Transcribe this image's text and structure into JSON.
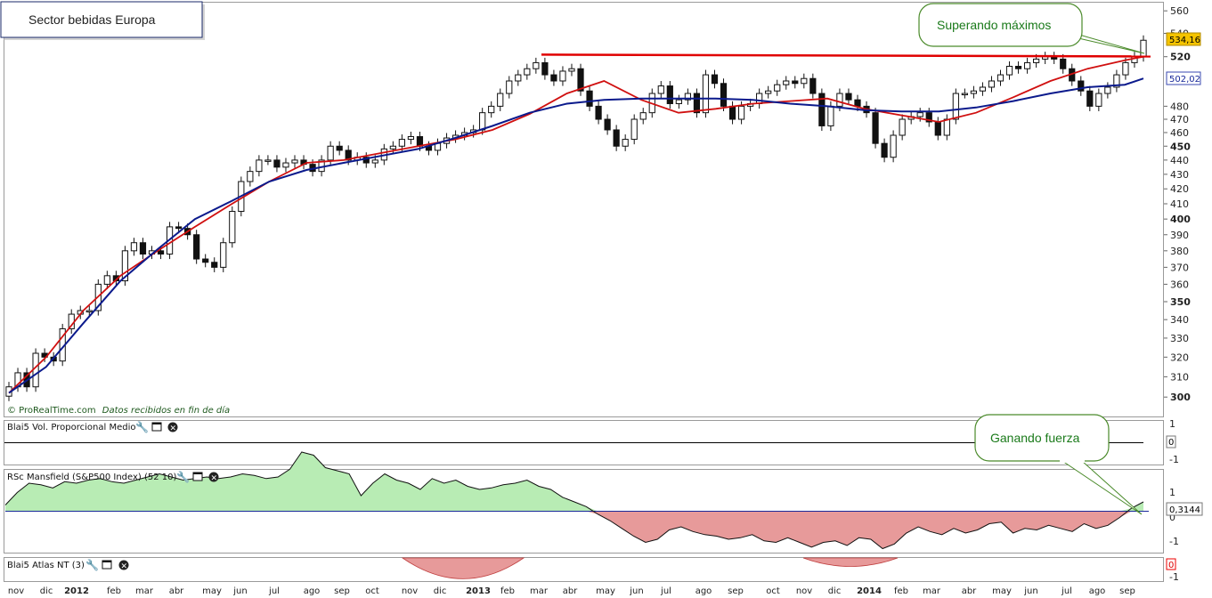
{
  "title": "Sector bebidas Europa",
  "credit": "© ProRealTime.com",
  "credit_note": "Datos recibidos en fin de día",
  "callouts": {
    "price": "Superando máximos",
    "rs": "Ganando fuerza"
  },
  "colors": {
    "ma_blue": "#0b1a8c",
    "ma_red": "#d01010",
    "resistance": "#e00000",
    "rs_positive_fill": "#b8ecb4",
    "rs_negative_fill": "#e79a9a",
    "callout_border": "#4a8a2a",
    "callout_text": "#1a7a1a"
  },
  "panels": {
    "volume": {
      "title": "Blai5 Vol. Proporcional Medio",
      "ticks": [
        "1",
        "0",
        "-1"
      ],
      "value_tag": "0"
    },
    "rs": {
      "title": "RSc Mansfield (S&P500 Index) (52 10)",
      "ticks": [
        "1",
        "0",
        "-1"
      ],
      "value_tag": "0,3144"
    },
    "atlas": {
      "title": "Blai5 Atlas NT (3)",
      "ticks": [
        "0",
        "-1"
      ],
      "value_tag": "0"
    }
  },
  "chart_data": [
    {
      "type": "candlestick",
      "title": "Sector bebidas Europa",
      "y_scale": "log",
      "ylim": [
        292,
        565
      ],
      "y_ticks": [
        300,
        310,
        320,
        330,
        340,
        350,
        360,
        370,
        380,
        390,
        400,
        410,
        420,
        430,
        440,
        450,
        460,
        470,
        480,
        520,
        540,
        560
      ],
      "y_ticks_bold": [
        300,
        350,
        400,
        450,
        520
      ],
      "x_labels": [
        "nov",
        "dic",
        "2012",
        "feb",
        "mar",
        "abr",
        "may",
        "jun",
        "jul",
        "ago",
        "sep",
        "oct",
        "nov",
        "dic",
        "2013",
        "feb",
        "mar",
        "abr",
        "may",
        "jun",
        "jul",
        "ago",
        "sep",
        "oct",
        "nov",
        "dic",
        "2014",
        "feb",
        "mar",
        "abr",
        "may",
        "jun",
        "jul",
        "ago",
        "sep"
      ],
      "x_labels_bold": [
        "2012",
        "2013",
        "2014"
      ],
      "close_tag": "534,16",
      "ma_tag": "502,02",
      "closes": [
        305,
        312,
        305,
        322,
        320,
        318,
        335,
        343,
        345,
        345,
        360,
        365,
        362,
        380,
        385,
        378,
        380,
        378,
        395,
        394,
        390,
        375,
        373,
        370,
        385,
        405,
        425,
        432,
        440,
        440,
        435,
        438,
        440,
        437,
        432,
        440,
        450,
        447,
        440,
        442,
        438,
        440,
        448,
        450,
        455,
        457,
        450,
        447,
        452,
        456,
        458,
        460,
        462,
        475,
        480,
        490,
        500,
        505,
        510,
        515,
        505,
        500,
        508,
        510,
        492,
        480,
        470,
        462,
        450,
        455,
        470,
        475,
        490,
        496,
        482,
        485,
        490,
        475,
        505,
        498,
        480,
        470,
        480,
        482,
        490,
        492,
        497,
        500,
        498,
        502,
        490,
        465,
        480,
        490,
        485,
        480,
        475,
        452,
        442,
        458,
        470,
        472,
        475,
        468,
        458,
        470,
        490,
        490,
        492,
        495,
        500,
        505,
        512,
        510,
        515,
        518,
        520,
        518,
        510,
        500,
        492,
        480,
        490,
        495,
        505,
        515,
        520,
        534
      ],
      "ma_blue": [
        [
          0,
          302
        ],
        [
          10,
          315
        ],
        [
          20,
          338
        ],
        [
          30,
          362
        ],
        [
          40,
          381
        ],
        [
          50,
          400
        ],
        [
          60,
          412
        ],
        [
          70,
          425
        ],
        [
          80,
          433
        ],
        [
          90,
          438
        ],
        [
          100,
          443
        ],
        [
          110,
          448
        ],
        [
          120,
          456
        ],
        [
          130,
          465
        ],
        [
          140,
          475
        ],
        [
          150,
          482
        ],
        [
          160,
          485
        ],
        [
          170,
          486
        ],
        [
          180,
          486
        ],
        [
          190,
          486
        ],
        [
          200,
          485
        ],
        [
          210,
          482
        ],
        [
          220,
          480
        ],
        [
          230,
          477
        ],
        [
          240,
          476
        ],
        [
          250,
          476
        ],
        [
          260,
          479
        ],
        [
          270,
          484
        ],
        [
          280,
          490
        ],
        [
          290,
          495
        ],
        [
          300,
          497
        ],
        [
          305,
          502
        ]
      ],
      "ma_red": [
        [
          0,
          302
        ],
        [
          10,
          320
        ],
        [
          20,
          345
        ],
        [
          30,
          365
        ],
        [
          40,
          380
        ],
        [
          50,
          395
        ],
        [
          60,
          410
        ],
        [
          70,
          425
        ],
        [
          80,
          438
        ],
        [
          90,
          440
        ],
        [
          100,
          445
        ],
        [
          110,
          450
        ],
        [
          120,
          455
        ],
        [
          130,
          462
        ],
        [
          140,
          474
        ],
        [
          150,
          490
        ],
        [
          160,
          500
        ],
        [
          170,
          485
        ],
        [
          180,
          475
        ],
        [
          190,
          478
        ],
        [
          200,
          482
        ],
        [
          210,
          484
        ],
        [
          220,
          486
        ],
        [
          230,
          478
        ],
        [
          240,
          473
        ],
        [
          250,
          468
        ],
        [
          260,
          475
        ],
        [
          270,
          487
        ],
        [
          280,
          500
        ],
        [
          290,
          510
        ],
        [
          300,
          517
        ],
        [
          305,
          520
        ]
      ],
      "resistance_level": 521
    },
    {
      "type": "area",
      "title": "RSc Mansfield (S&P500 Index) (52 10)",
      "ylim": [
        -1.3,
        1.3
      ],
      "y_ticks": [
        1,
        0,
        -1
      ],
      "last_value": 0.3144,
      "values": [
        0.2,
        0.6,
        0.9,
        0.85,
        0.75,
        0.95,
        0.9,
        1.0,
        1.05,
        0.95,
        0.9,
        1.0,
        1.1,
        1.2,
        1.1,
        1.0,
        1.05,
        1.1,
        1.05,
        1.1,
        1.2,
        1.15,
        1.05,
        1.1,
        1.35,
        1.9,
        1.8,
        1.4,
        1.3,
        1.2,
        0.5,
        0.9,
        1.2,
        1.0,
        0.9,
        0.7,
        1.05,
        0.9,
        1.0,
        0.8,
        0.7,
        0.75,
        0.85,
        0.9,
        1.0,
        0.8,
        0.7,
        0.45,
        0.3,
        0.15,
        -0.1,
        -0.3,
        -0.55,
        -0.8,
        -1.0,
        -0.9,
        -0.6,
        -0.5,
        -0.65,
        -0.75,
        -0.8,
        -0.9,
        -0.85,
        -0.75,
        -0.95,
        -1.0,
        -0.85,
        -1.0,
        -1.15,
        -1.0,
        -0.95,
        -1.1,
        -0.85,
        -0.9,
        -1.2,
        -1.05,
        -0.7,
        -0.5,
        -0.65,
        -0.75,
        -0.55,
        -0.7,
        -0.6,
        -0.4,
        -0.35,
        -0.7,
        -0.55,
        -0.6,
        -0.45,
        -0.55,
        -0.65,
        -0.4,
        -0.55,
        -0.45,
        -0.2,
        0.1,
        0.3
      ]
    },
    {
      "type": "area",
      "title": "Blai5 Atlas NT (3)",
      "ylim": [
        -1.2,
        0.3
      ],
      "y_ticks": [
        0,
        -1
      ],
      "segments": [
        {
          "from": "nov 2012",
          "to": "feb 2013",
          "min": -1.05
        },
        {
          "from": "nov 2013",
          "to": "feb 2014",
          "min": -0.25
        }
      ]
    },
    {
      "type": "line",
      "title": "Blai5 Vol. Proporcional Medio",
      "ylim": [
        -1,
        1
      ],
      "y_ticks": [
        1,
        0,
        -1
      ],
      "values": [
        0
      ]
    }
  ]
}
